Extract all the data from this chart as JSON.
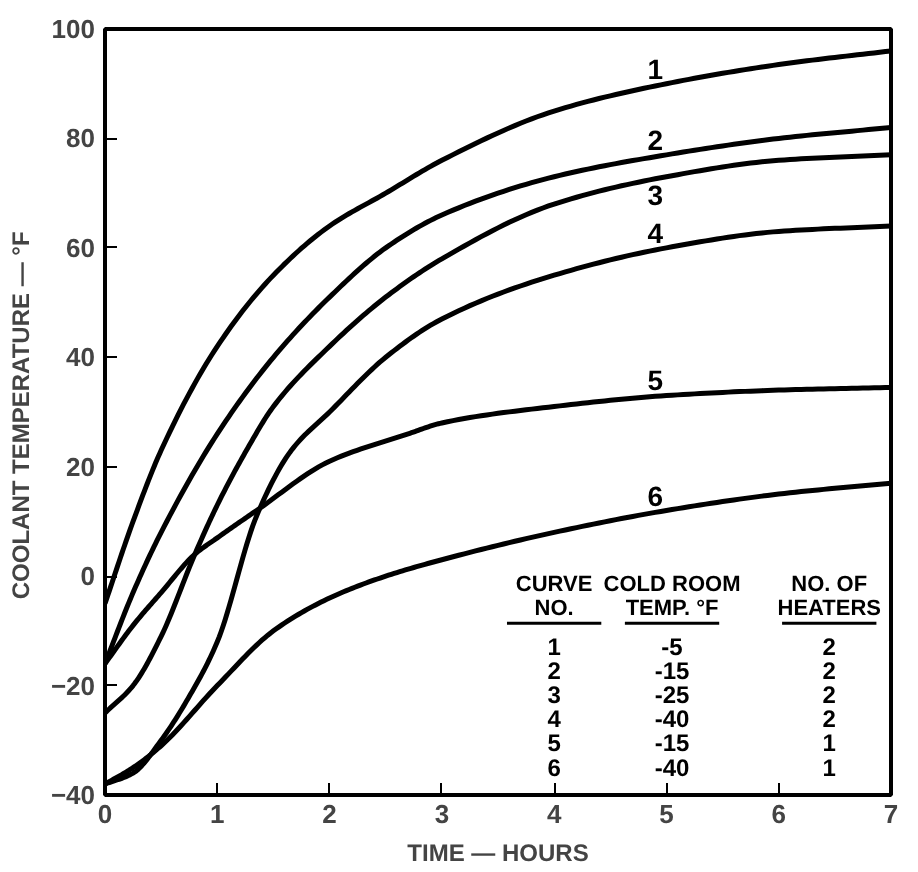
{
  "chart_data": {
    "type": "line",
    "xlabel": "TIME — HOURS",
    "ylabel": "COOLANT  TEMPERATURE — °F",
    "xlim": [
      0,
      7
    ],
    "ylim": [
      -40,
      100
    ],
    "xticks": [
      0,
      1,
      2,
      3,
      4,
      5,
      6,
      7
    ],
    "yticks": [
      -40,
      -20,
      0,
      20,
      40,
      60,
      80,
      100
    ],
    "grid": false,
    "legend": "bottom right",
    "marker": "none",
    "line_style": "solid",
    "series": [
      {
        "name": "1",
        "color": "#000000",
        "x": [
          0,
          0.25,
          0.5,
          1,
          1.5,
          2,
          2.5,
          3,
          4,
          5,
          6,
          7
        ],
        "values": [
          -5,
          10,
          23,
          42,
          55,
          64,
          70,
          76,
          85,
          90,
          93.5,
          96
        ]
      },
      {
        "name": "2",
        "color": "#000000",
        "x": [
          0,
          0.25,
          0.5,
          1,
          1.5,
          2,
          2.5,
          3,
          4,
          5,
          6,
          7
        ],
        "values": [
          -16,
          -3,
          8,
          26,
          40,
          51,
          60,
          66,
          73,
          77,
          80,
          82
        ]
      },
      {
        "name": "3",
        "color": "#000000",
        "x": [
          0,
          0.25,
          0.5,
          0.8,
          1,
          1.26,
          1.5,
          2,
          2.5,
          3,
          4,
          5,
          6,
          7
        ],
        "values": [
          -25,
          -20,
          -11,
          4,
          13,
          23,
          31,
          42,
          51,
          58,
          68,
          73,
          76,
          77
        ]
      },
      {
        "name": "4",
        "color": "#000000",
        "x": [
          0,
          0.25,
          0.5,
          0.75,
          1,
          1.35,
          1.66,
          2,
          2.5,
          3,
          4,
          5,
          6,
          7
        ],
        "values": [
          -38,
          -36,
          -30,
          -22,
          -12,
          11,
          23,
          30,
          40,
          47,
          55,
          60,
          63,
          64
        ]
      },
      {
        "name": "5",
        "color": "#000000",
        "x": [
          0,
          0.25,
          0.5,
          0.8,
          1,
          1.35,
          2,
          2.7,
          3,
          4,
          5,
          6,
          7
        ],
        "values": [
          -16,
          -9,
          -3,
          4,
          7,
          12,
          21,
          26,
          28,
          31,
          33,
          34,
          34.5
        ]
      },
      {
        "name": "6",
        "color": "#000000",
        "x": [
          0,
          0.25,
          0.5,
          1,
          1.5,
          2,
          2.5,
          3,
          4,
          5,
          6,
          7
        ],
        "values": [
          -38,
          -35,
          -31,
          -20,
          -10,
          -4,
          0,
          3,
          8,
          12,
          15,
          17
        ]
      }
    ],
    "annotations": [
      "CURVE\nNO.",
      "COLD ROOM\nTEMP. °F",
      "NO. OF\nHEATERS",
      "1",
      "-5",
      "2",
      "2",
      "-15",
      "2",
      "3",
      "-25",
      "2",
      "4",
      "-40",
      "2",
      "5",
      "-15",
      "1",
      "6",
      "-40",
      "1"
    ]
  }
}
